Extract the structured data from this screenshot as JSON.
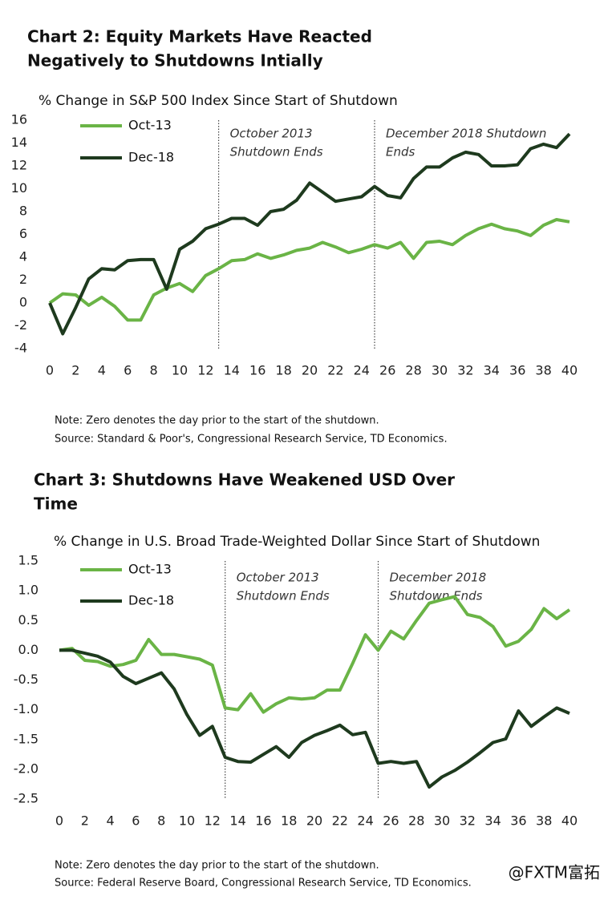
{
  "chart_data": [
    {
      "type": "line",
      "title": [
        "Chart 2: Equity Markets Have Reacted",
        "Negatively to Shutdowns Intially"
      ],
      "subtitle": "% Change in S&P 500 Index Since Start of Shutdown",
      "x": [
        0,
        1,
        2,
        3,
        4,
        5,
        6,
        7,
        8,
        9,
        10,
        11,
        12,
        13,
        14,
        15,
        16,
        17,
        18,
        19,
        20,
        21,
        22,
        23,
        24,
        25,
        26,
        27,
        28,
        29,
        30,
        31,
        32,
        33,
        34,
        35,
        36,
        37,
        38,
        39,
        40
      ],
      "series": [
        {
          "name": "Oct-13",
          "color": "#6ab446",
          "values": [
            0,
            0.8,
            0.7,
            -0.2,
            0.5,
            -0.3,
            -1.5,
            -1.5,
            0.7,
            1.3,
            1.7,
            1.0,
            2.4,
            3.0,
            3.7,
            3.8,
            4.3,
            3.9,
            4.2,
            4.6,
            4.8,
            5.3,
            4.9,
            4.4,
            4.7,
            5.1,
            4.8,
            5.3,
            3.9,
            5.3,
            5.4,
            5.1,
            5.9,
            6.5,
            6.9,
            6.5,
            6.3,
            5.9,
            6.8,
            7.3,
            7.1
          ]
        },
        {
          "name": "Dec-18",
          "color": "#1e3a1e",
          "values": [
            0,
            -2.7,
            -0.4,
            2.1,
            3.0,
            2.9,
            3.7,
            3.8,
            3.8,
            1.2,
            4.7,
            5.4,
            6.5,
            6.9,
            7.4,
            7.4,
            6.8,
            8.0,
            8.2,
            9.0,
            10.5,
            9.7,
            8.9,
            9.1,
            9.3,
            10.2,
            9.4,
            9.2,
            10.9,
            11.9,
            11.9,
            12.7,
            13.2,
            13.0,
            12.0,
            12.0,
            12.1,
            13.5,
            13.9,
            13.6,
            14.8
          ]
        }
      ],
      "xlim": [
        0,
        40
      ],
      "xticks": [
        0,
        2,
        4,
        6,
        8,
        10,
        12,
        14,
        16,
        18,
        20,
        22,
        24,
        26,
        28,
        30,
        32,
        34,
        36,
        38,
        40
      ],
      "ylim": [
        -4,
        16
      ],
      "yticks": [
        -4,
        -2,
        0,
        2,
        4,
        6,
        8,
        10,
        12,
        14,
        16
      ],
      "annotations": [
        {
          "x": 13,
          "lines": [
            "October 2013",
            "Shutdown Ends"
          ]
        },
        {
          "x": 25,
          "lines": [
            "December 2018 Shutdown",
            "Ends"
          ]
        }
      ],
      "notes": [
        "Note: Zero denotes the day prior to the start of the shutdown.",
        "Source: Standard & Poor's, Congressional Research Service, TD Economics."
      ]
    },
    {
      "type": "line",
      "title": [
        "Chart 3: Shutdowns Have Weakened USD Over",
        "Time"
      ],
      "subtitle": "% Change in U.S. Broad Trade-Weighted Dollar Since Start of Shutdown",
      "x": [
        0,
        1,
        2,
        3,
        4,
        5,
        6,
        7,
        8,
        9,
        10,
        11,
        12,
        13,
        14,
        15,
        16,
        17,
        18,
        19,
        20,
        21,
        22,
        23,
        24,
        25,
        26,
        27,
        28,
        29,
        30,
        31,
        32,
        33,
        34,
        35,
        36,
        37,
        38,
        39,
        40
      ],
      "series": [
        {
          "name": "Oct-13",
          "color": "#6ab446",
          "values": [
            0,
            0.03,
            -0.17,
            -0.19,
            -0.27,
            -0.24,
            -0.17,
            0.18,
            -0.07,
            -0.07,
            -0.11,
            -0.15,
            -0.25,
            -0.97,
            -1.0,
            -0.73,
            -1.04,
            -0.9,
            -0.8,
            -0.82,
            -0.8,
            -0.67,
            -0.67,
            -0.22,
            0.26,
            0.0,
            0.32,
            0.19,
            0.5,
            0.79,
            0.85,
            0.9,
            0.6,
            0.55,
            0.4,
            0.07,
            0.15,
            0.35,
            0.7,
            0.53,
            0.68
          ]
        },
        {
          "name": "Dec-18",
          "color": "#1e3a1e",
          "values": [
            0,
            0,
            -0.05,
            -0.1,
            -0.2,
            -0.44,
            -0.56,
            -0.47,
            -0.38,
            -0.65,
            -1.08,
            -1.43,
            -1.28,
            -1.8,
            -1.87,
            -1.88,
            -1.75,
            -1.62,
            -1.8,
            -1.55,
            -1.43,
            -1.35,
            -1.26,
            -1.42,
            -1.38,
            -1.9,
            -1.87,
            -1.9,
            -1.87,
            -2.3,
            -2.13,
            -2.02,
            -1.88,
            -1.72,
            -1.55,
            -1.49,
            -1.02,
            -1.28,
            -1.12,
            -0.97,
            -1.06
          ]
        }
      ],
      "xlim": [
        0,
        40
      ],
      "xticks": [
        0,
        2,
        4,
        6,
        8,
        10,
        12,
        14,
        16,
        18,
        20,
        22,
        24,
        26,
        28,
        30,
        32,
        34,
        36,
        38,
        40
      ],
      "ylim": [
        -2.5,
        1.5
      ],
      "yticks": [
        -2.5,
        {
          "value": -2,
          "label": "-2.0"
        },
        -1.5,
        {
          "value": -1,
          "label": "-1.0"
        },
        -0.5,
        {
          "value": 0,
          "label": "0.0"
        },
        0.5,
        {
          "value": 1,
          "label": "1.0"
        },
        1.5
      ],
      "annotations": [
        {
          "x": 13,
          "lines": [
            "October 2013",
            "Shutdown Ends"
          ]
        },
        {
          "x": 25,
          "lines": [
            "December 2018",
            "Shutdown Ends"
          ]
        }
      ],
      "notes": [
        "Note: Zero denotes the day prior to the start of the shutdown.",
        "Source: Federal Reserve Board, Congressional Research Service, TD Economics."
      ],
      "watermark": "@FXTM富拓"
    }
  ]
}
